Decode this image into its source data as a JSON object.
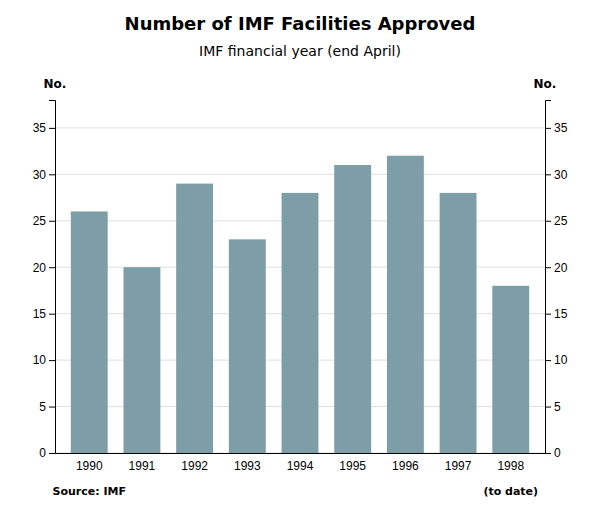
{
  "chart_data": {
    "type": "bar",
    "title": "Number of IMF Facilities Approved",
    "subtitle": "IMF financial year (end April)",
    "categories": [
      "1990",
      "1991",
      "1992",
      "1993",
      "1994",
      "1995",
      "1996",
      "1997",
      "1998"
    ],
    "values": [
      26,
      20,
      29,
      23,
      28,
      31,
      32,
      28,
      18
    ],
    "color": "#7d9ea6",
    "ylabel": "No.",
    "y2label": "No.",
    "ylim": [
      0,
      38
    ],
    "yticks": [
      0,
      5,
      10,
      15,
      20,
      25,
      30,
      35
    ],
    "y2lim": [
      0,
      38
    ],
    "y2ticks": [
      0,
      5,
      10,
      15,
      20,
      25,
      30,
      35
    ],
    "grid": true,
    "annotations": [
      {
        "text": "Source: IMF",
        "x": "1990"
      },
      {
        "text": "(to date)",
        "x": "1998"
      }
    ]
  }
}
